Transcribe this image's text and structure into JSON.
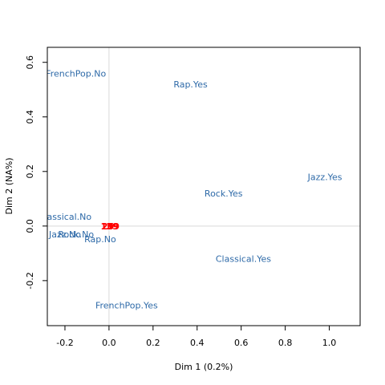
{
  "chart_data": {
    "type": "scatter",
    "title": "",
    "xlabel": "Dim 1 (0.2%)",
    "ylabel": "Dim 2 (NA%)",
    "xlim": [
      -0.28,
      1.14
    ],
    "ylim": [
      -0.365,
      0.655
    ],
    "x_ticks": [
      -0.2,
      0.0,
      0.2,
      0.4,
      0.6,
      0.8,
      1.0
    ],
    "x_tick_labels": [
      "-0.2",
      "0.0",
      "0.2",
      "0.4",
      "0.6",
      "0.8",
      "1.0"
    ],
    "y_ticks": [
      -0.2,
      0.0,
      0.2,
      0.4,
      0.6
    ],
    "y_tick_labels": [
      "-0.2",
      "0.0",
      "0.2",
      "0.4",
      "0.6"
    ],
    "reference_lines": {
      "x": 0,
      "y": 0,
      "color": "#d9d9d9"
    },
    "series": [
      {
        "name": "categories",
        "color": "#2e6aa8",
        "points": [
          {
            "label": "FrenchPop.No",
            "x": -0.15,
            "y": 0.56
          },
          {
            "label": "Rap.Yes",
            "x": 0.37,
            "y": 0.52
          },
          {
            "label": "Jazz.Yes",
            "x": 0.98,
            "y": 0.18
          },
          {
            "label": "Rock.Yes",
            "x": 0.52,
            "y": 0.12
          },
          {
            "label": "Classical.No",
            "x": -0.2,
            "y": 0.035
          },
          {
            "label": "Jazz.No",
            "x": -0.2,
            "y": -0.03
          },
          {
            "label": "Rock.No",
            "x": -0.15,
            "y": -0.03
          },
          {
            "label": "Rap.No",
            "x": -0.04,
            "y": -0.048
          },
          {
            "label": "Classical.Yes",
            "x": 0.61,
            "y": -0.12
          },
          {
            "label": "FrenchPop.Yes",
            "x": 0.08,
            "y": -0.29
          }
        ]
      },
      {
        "name": "individuals",
        "color": "#ff0000",
        "points": [
          {
            "label": "15",
            "x": -0.01,
            "y": 0.0
          },
          {
            "label": "09",
            "x": 0.02,
            "y": 0.0
          },
          {
            "label": "25",
            "x": -0.005,
            "y": 0.0
          },
          {
            "label": "39",
            "x": 0.015,
            "y": 0.0
          }
        ]
      }
    ]
  }
}
